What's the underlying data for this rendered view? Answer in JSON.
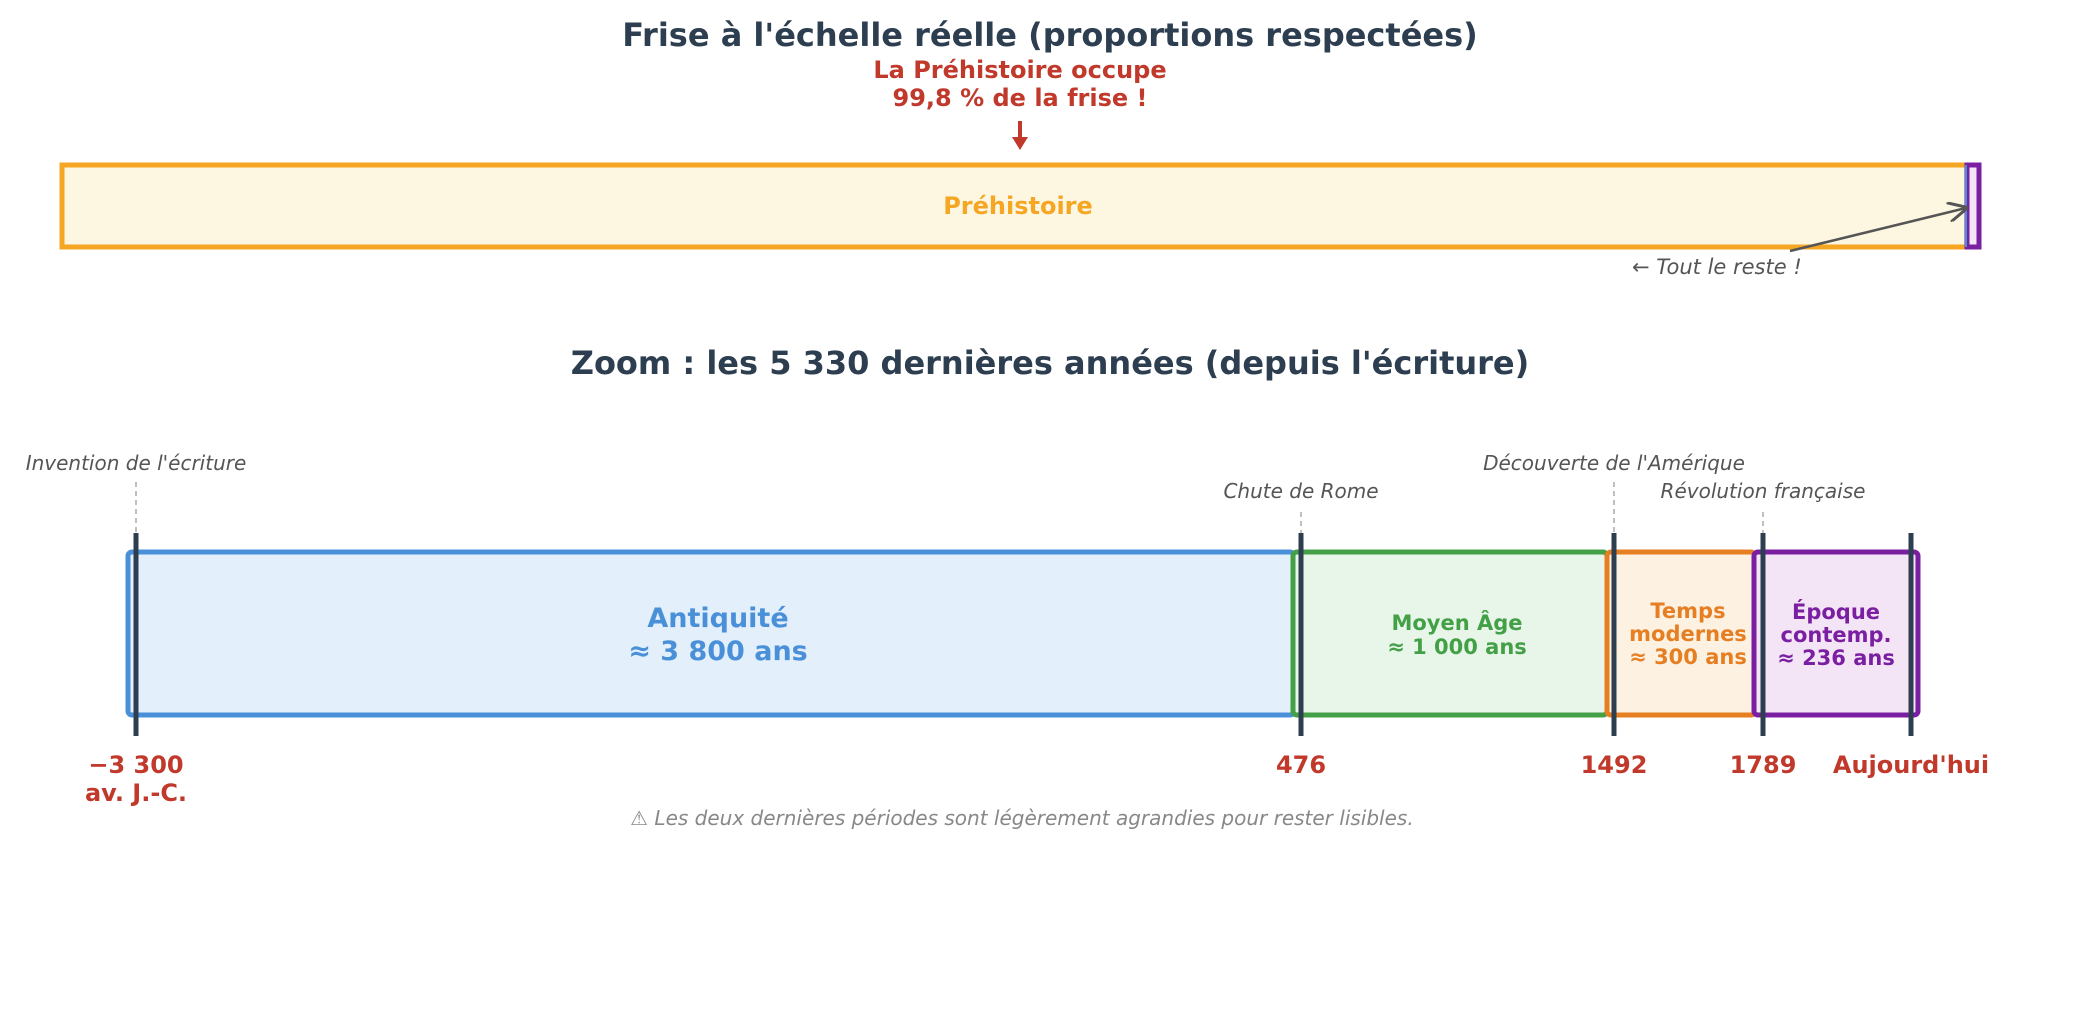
{
  "top": {
    "title": "Frise à l'échelle réelle (proportions respectées)",
    "callout_line1": "La Préhistoire occupe",
    "callout_line2": "99,8 % de la frise !",
    "prehistory_label": "Préhistoire",
    "rest_label": "← Tout le reste !"
  },
  "zoom": {
    "title": "Zoom : les 5 330 dernières années (depuis l'écriture)",
    "periods": [
      {
        "line1": "Antiquité",
        "line2": "≈ 3 800 ans",
        "line3": ""
      },
      {
        "line1": "Moyen Âge",
        "line2": "≈ 1 000 ans",
        "line3": ""
      },
      {
        "line1": "Temps",
        "line2": "modernes",
        "line3": "≈ 300 ans"
      },
      {
        "line1": "Époque",
        "line2": "contemp.",
        "line3": "≈ 236 ans"
      }
    ],
    "events": [
      "Invention de l'écriture",
      "Chute de Rome",
      "Découverte de l'Amérique",
      "Révolution française"
    ],
    "dates": [
      {
        "line1": "−3 300",
        "line2": "av. J.-C."
      },
      {
        "line1": "476",
        "line2": ""
      },
      {
        "line1": "1492",
        "line2": ""
      },
      {
        "line1": "1789",
        "line2": ""
      },
      {
        "line1": "Aujourd'hui",
        "line2": ""
      }
    ],
    "note": "⚠ Les deux dernières périodes sont légèrement agrandies pour rester lisibles."
  },
  "colors": {
    "prehistory": "#f5a623",
    "antiquity": "#4a90d9",
    "middle_ages": "#43a047",
    "modern": "#e67e22",
    "contemporary": "#7b1fa2",
    "dates": "#c0392b",
    "ticks": "#2c3e50"
  }
}
